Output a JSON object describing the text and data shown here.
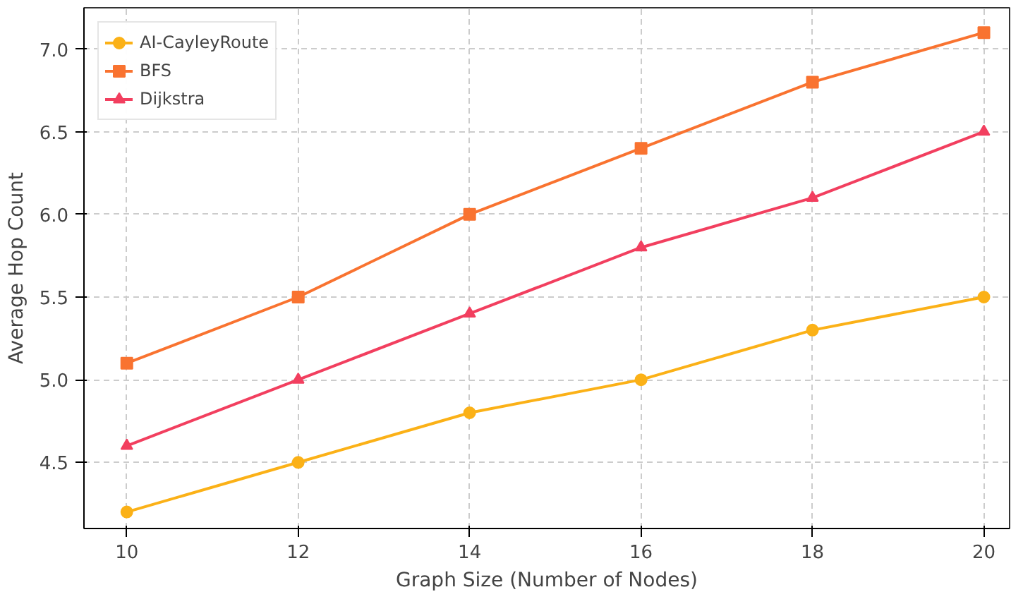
{
  "chart_data": {
    "type": "line",
    "xlabel": "Graph Size (Number of Nodes)",
    "ylabel": "Average Hop Count",
    "x": [
      10,
      12,
      14,
      16,
      18,
      20
    ],
    "series": [
      {
        "name": "AI-CayleyRoute",
        "color": "#fbb117",
        "marker": "circle",
        "values": [
          4.2,
          4.5,
          4.8,
          5.0,
          5.3,
          5.5
        ]
      },
      {
        "name": "BFS",
        "color": "#f97330",
        "marker": "square",
        "values": [
          5.1,
          5.5,
          6.0,
          6.4,
          6.8,
          7.1
        ]
      },
      {
        "name": "Dijkstra",
        "color": "#f23f5f",
        "marker": "triangle",
        "values": [
          4.6,
          5.0,
          5.4,
          5.8,
          6.1,
          6.5
        ]
      }
    ],
    "xlim": [
      9.5,
      20.3
    ],
    "ylim": [
      4.1,
      7.25
    ],
    "xticks": [
      10,
      12,
      14,
      16,
      18,
      20
    ],
    "yticks": [
      4.5,
      {
        "value": 5,
        "label": "5.0"
      },
      5.5,
      {
        "value": 6,
        "label": "6.0"
      },
      6.5,
      {
        "value": 7,
        "label": "7.0"
      }
    ],
    "grid": true,
    "legend": "top left",
    "line_style": "solid"
  }
}
